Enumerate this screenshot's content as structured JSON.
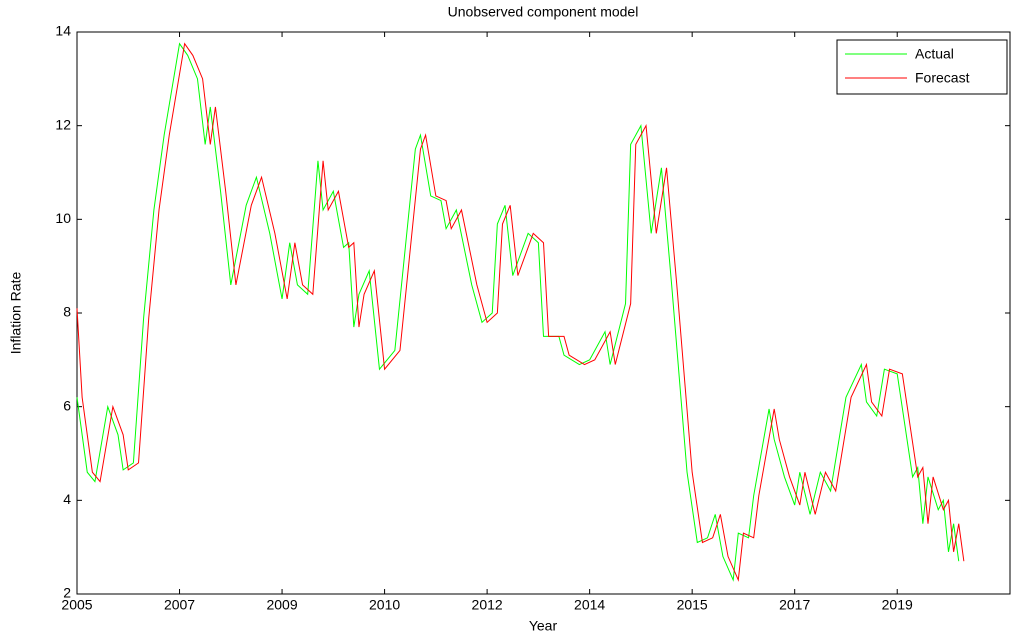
{
  "chart_data": {
    "type": "line",
    "title": "Unobserved component model",
    "xlabel": "Year",
    "ylabel": "Inflation Rate",
    "xlim": [
      0,
      182
    ],
    "ylim": [
      2,
      14
    ],
    "xticks": [
      {
        "value": 0,
        "label": "2005"
      },
      {
        "value": 20,
        "label": "2007"
      },
      {
        "value": 40,
        "label": "2009"
      },
      {
        "value": 60,
        "label": "2010"
      },
      {
        "value": 80,
        "label": "2012"
      },
      {
        "value": 100,
        "label": "2014"
      },
      {
        "value": 120,
        "label": "2015"
      },
      {
        "value": 140,
        "label": "2017"
      },
      {
        "value": 160,
        "label": "2019"
      }
    ],
    "yticks": [
      2,
      4,
      6,
      8,
      10,
      12,
      14
    ],
    "legend": "top-right",
    "series": [
      {
        "name": "Actual",
        "color": "#00ff00",
        "x": [
          0,
          2,
          3.5,
          6,
          8,
          9,
          11,
          13,
          15,
          17,
          20,
          21.6,
          23.5,
          25,
          26,
          28,
          30,
          33,
          35,
          37.6,
          40,
          41.5,
          43,
          45,
          47,
          48,
          50,
          52,
          53,
          54,
          55,
          57,
          59,
          62,
          66,
          67,
          69,
          71,
          72,
          74,
          77,
          79,
          81,
          82,
          83.5,
          85,
          88,
          90,
          91,
          94,
          95,
          98,
          100,
          103,
          104,
          107,
          108,
          110,
          112,
          114,
          116,
          119,
          121,
          123,
          124.5,
          126,
          128,
          129,
          131,
          132,
          135,
          136,
          138,
          140,
          141,
          143,
          145,
          147,
          150,
          153,
          154,
          156,
          157.5,
          160,
          163,
          164,
          165,
          166,
          168,
          169,
          170,
          171,
          172
        ],
        "values": [
          6.2,
          4.6,
          4.4,
          6.0,
          5.4,
          4.65,
          4.8,
          7.9,
          10.2,
          11.8,
          13.75,
          13.5,
          13.0,
          11.6,
          12.4,
          10.6,
          8.6,
          10.3,
          10.9,
          9.7,
          8.3,
          9.5,
          8.6,
          8.4,
          11.25,
          10.2,
          10.6,
          9.4,
          9.5,
          7.7,
          8.4,
          8.9,
          6.8,
          7.2,
          11.5,
          11.8,
          10.5,
          10.4,
          9.8,
          10.2,
          8.6,
          7.8,
          8.0,
          9.9,
          10.3,
          8.8,
          9.7,
          9.5,
          7.5,
          7.5,
          7.1,
          6.9,
          7.0,
          7.6,
          6.9,
          8.2,
          11.6,
          12.0,
          9.7,
          11.1,
          8.6,
          4.6,
          3.1,
          3.2,
          3.7,
          2.8,
          2.3,
          3.3,
          3.2,
          4.1,
          5.95,
          5.3,
          4.5,
          3.9,
          4.6,
          3.7,
          4.6,
          4.2,
          6.2,
          6.9,
          6.1,
          5.8,
          6.8,
          6.7,
          4.5,
          4.7,
          3.5,
          4.5,
          3.8,
          4.0,
          2.9,
          3.5,
          2.7
        ]
      },
      {
        "name": "Forecast",
        "color": "#ff0000",
        "x": [
          0,
          1,
          3,
          4.5,
          7,
          9,
          10,
          12,
          14,
          16,
          18,
          21,
          22.6,
          24.5,
          26,
          27,
          29,
          31,
          34,
          36,
          38.6,
          41,
          42.5,
          44,
          46,
          48,
          49,
          51,
          53,
          54,
          55,
          56,
          58,
          60,
          63,
          67,
          68,
          70,
          72,
          73,
          75,
          78,
          80,
          82,
          83,
          84.5,
          86,
          89,
          91,
          92,
          95,
          96,
          99,
          101,
          104,
          105,
          108,
          109,
          111,
          113,
          115,
          117,
          120,
          122,
          124,
          125.5,
          127,
          129,
          130,
          132,
          133,
          136,
          137,
          139,
          141,
          142,
          144,
          146,
          148,
          151,
          154,
          155,
          157,
          158.5,
          161,
          164,
          165,
          166,
          167,
          169,
          170,
          171,
          172,
          173
        ],
        "values": [
          8.1,
          6.2,
          4.6,
          4.4,
          6.0,
          5.4,
          4.65,
          4.8,
          7.9,
          10.2,
          11.8,
          13.75,
          13.5,
          13.0,
          11.6,
          12.4,
          10.6,
          8.6,
          10.3,
          10.9,
          9.7,
          8.3,
          9.5,
          8.6,
          8.4,
          11.25,
          10.2,
          10.6,
          9.4,
          9.5,
          7.7,
          8.4,
          8.9,
          6.8,
          7.2,
          11.5,
          11.8,
          10.5,
          10.4,
          9.8,
          10.2,
          8.6,
          7.8,
          8.0,
          9.9,
          10.3,
          8.8,
          9.7,
          9.5,
          7.5,
          7.5,
          7.1,
          6.9,
          7.0,
          7.6,
          6.9,
          8.2,
          11.6,
          12.0,
          9.7,
          11.1,
          8.6,
          4.6,
          3.1,
          3.2,
          3.7,
          2.8,
          2.3,
          3.3,
          3.2,
          4.1,
          5.95,
          5.3,
          4.5,
          3.9,
          4.6,
          3.7,
          4.6,
          4.2,
          6.2,
          6.9,
          6.1,
          5.8,
          6.8,
          6.7,
          4.5,
          4.7,
          3.5,
          4.5,
          3.8,
          4.0,
          2.9,
          3.5,
          2.7
        ]
      }
    ]
  }
}
